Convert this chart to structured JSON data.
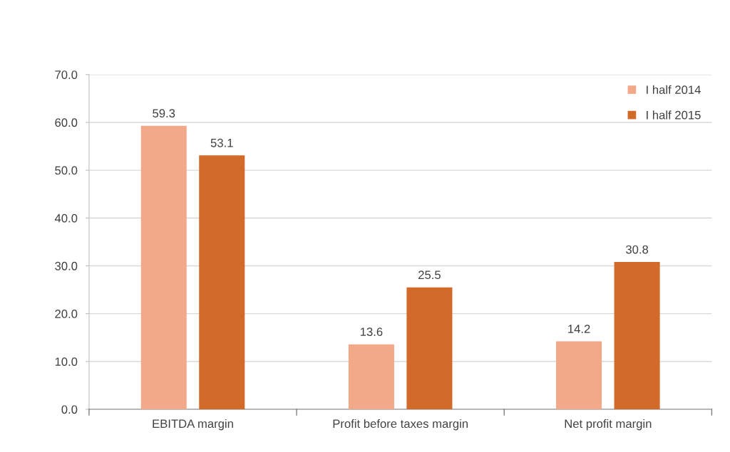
{
  "chart_data": {
    "type": "bar",
    "categories": [
      "EBITDA margin",
      "Profit before taxes margin",
      "Net profit margin"
    ],
    "series": [
      {
        "name": "I half 2014",
        "color": "#f2a98a",
        "values": [
          59.3,
          13.6,
          14.2
        ]
      },
      {
        "name": "I half 2015",
        "color": "#d26b2a",
        "values": [
          53.1,
          25.5,
          30.8
        ]
      }
    ],
    "ylim": [
      0,
      70
    ],
    "yticks": [
      {
        "value": 0,
        "label": "0.0"
      },
      {
        "value": 10,
        "label": "10.0"
      },
      {
        "value": 20,
        "label": "20.0"
      },
      {
        "value": 30,
        "label": "30.0"
      },
      {
        "value": 40,
        "label": "40.0"
      },
      {
        "value": 50,
        "label": "50.0"
      },
      {
        "value": 60,
        "label": "60.0"
      },
      {
        "value": 70,
        "label": "70.0"
      }
    ],
    "grid": "y",
    "legend": "top right",
    "data_labels": true
  }
}
